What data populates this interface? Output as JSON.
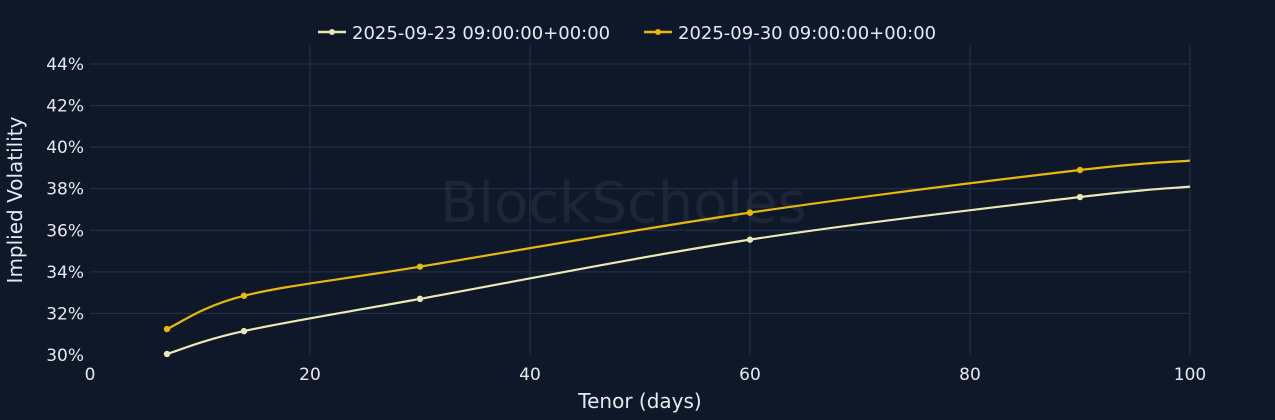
{
  "chart_data": {
    "type": "line",
    "title": "",
    "xlabel": "Tenor (days)",
    "ylabel": "Implied Volatility",
    "xlim": [
      0,
      100
    ],
    "ylim": [
      30,
      44
    ],
    "x_ticks": [
      "0",
      "20",
      "40",
      "60",
      "80",
      "100"
    ],
    "y_ticks": [
      "30%",
      "32%",
      "34%",
      "36%",
      "38%",
      "40%",
      "42%",
      "44%"
    ],
    "grid": true,
    "legend_position": "top",
    "watermark": "BlockScholes",
    "series": [
      {
        "name": "2025-09-23 09:00:00+00:00",
        "color": "#e9e9b4",
        "x": [
          7,
          14,
          30,
          60,
          90,
          100
        ],
        "y": [
          30.05,
          31.15,
          32.7,
          35.55,
          37.6,
          38.1
        ]
      },
      {
        "name": "2025-09-30 09:00:00+00:00",
        "color": "#e8b90c",
        "x": [
          7,
          14,
          30,
          60,
          90,
          100
        ],
        "y": [
          31.25,
          32.85,
          34.25,
          36.85,
          38.9,
          39.35
        ]
      }
    ]
  }
}
